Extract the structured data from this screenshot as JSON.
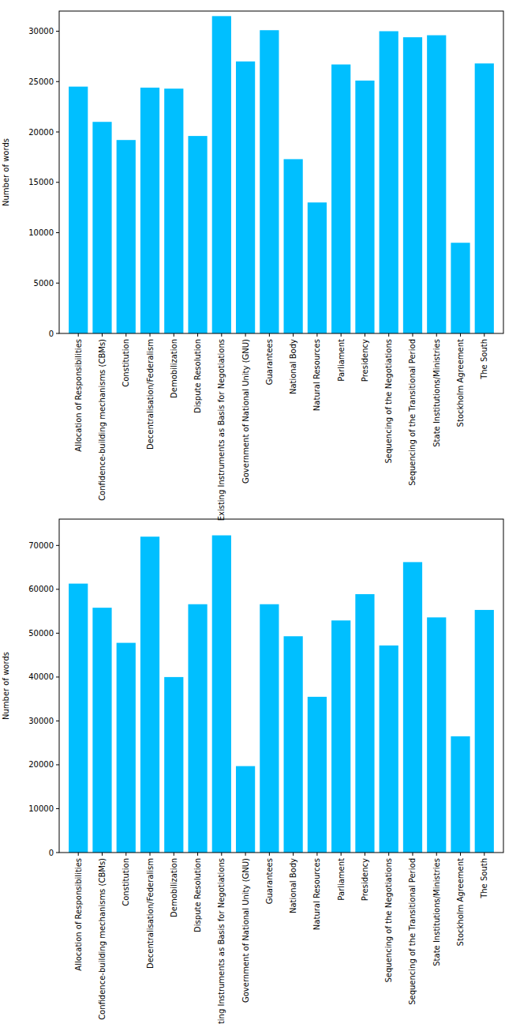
{
  "chart_data": [
    {
      "type": "bar",
      "ylabel": "Number of words",
      "categories": [
        "Allocation of Responsibilities",
        "Confidence-building mechanisms (CBMs)",
        "Constitution",
        "Decentralisation/Federalism",
        "Demobilization",
        "Dispute Resolution",
        "Existing Instruments as Basis for Negotiations",
        "Government of National Unity (GNU)",
        "Guarantees",
        "National Body",
        "Natural Resources",
        "Parliament",
        "Presidency",
        "Sequencing of the Negotiations",
        "Sequencing of the Transitional Period",
        "State Institutions/Ministries",
        "Stockholm Agreement",
        "The South"
      ],
      "values": [
        24500,
        21000,
        19200,
        24400,
        24300,
        19600,
        31500,
        27000,
        30100,
        17300,
        13000,
        26700,
        25100,
        30000,
        29400,
        29600,
        9000,
        26800
      ],
      "color": "#00bfff",
      "ylim": [
        0,
        32000
      ],
      "yticks": [
        0,
        5000,
        10000,
        15000,
        20000,
        25000,
        30000
      ]
    },
    {
      "type": "bar",
      "ylabel": "Number of words",
      "categories": [
        "Allocation of Responsibilities",
        "Confidence-building mechanisms (CBMs)",
        "Constitution",
        "Decentralisation/Federalism",
        "Demobilization",
        "Dispute Resolution",
        "Existing Instruments as Basis for Negotiations",
        "Government of National Unity (GNU)",
        "Guarantees",
        "National Body",
        "Natural Resources",
        "Parliament",
        "Presidency",
        "Sequencing of the Negotiations",
        "Sequencing of the Transitional Period",
        "State Institutions/Ministries",
        "Stockholm Agreement",
        "The South"
      ],
      "values": [
        61300,
        55800,
        47800,
        72000,
        40000,
        56600,
        72300,
        19700,
        56600,
        49300,
        35500,
        52900,
        58900,
        47200,
        66200,
        53600,
        26500,
        55300
      ],
      "color": "#00bfff",
      "ylim": [
        0,
        76000
      ],
      "yticks": [
        0,
        10000,
        20000,
        30000,
        40000,
        50000,
        60000,
        70000
      ]
    }
  ]
}
